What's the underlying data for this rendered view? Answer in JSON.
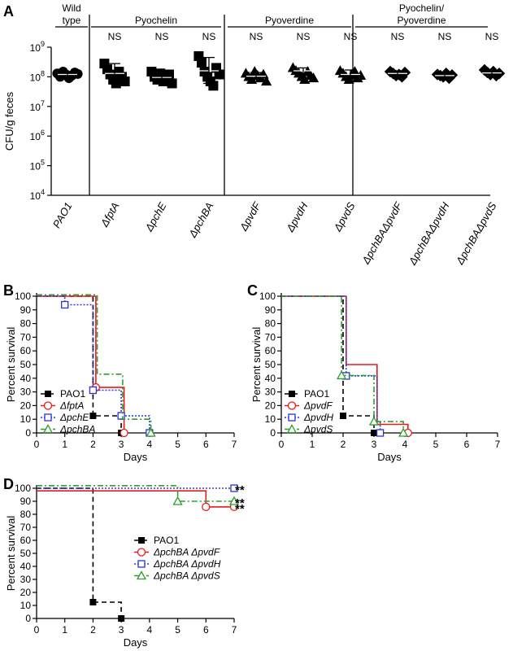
{
  "chart_data": [
    {
      "panel": "A",
      "type": "scatter",
      "ylabel": "CFU/g feces",
      "yscale": "log",
      "ylim": [
        10000,
        1000000000
      ],
      "yticks": [
        {
          "value": 10000,
          "base": "10",
          "exp": "4"
        },
        {
          "value": 100000,
          "base": "10",
          "exp": "5"
        },
        {
          "value": 1000000,
          "base": "10",
          "exp": "6"
        },
        {
          "value": 10000000,
          "base": "10",
          "exp": "7"
        },
        {
          "value": 100000000,
          "base": "10",
          "exp": "8"
        },
        {
          "value": 1000000000,
          "base": "10",
          "exp": "9"
        }
      ],
      "groups": [
        {
          "label": "Wild\ntype",
          "categories": [
            0
          ]
        },
        {
          "label": "Pyochelin",
          "categories": [
            1,
            2,
            3
          ]
        },
        {
          "label": "Pyoverdine",
          "categories": [
            4,
            5,
            6
          ]
        },
        {
          "label": "Pyochelin/\nPyoverdine",
          "categories": [
            7,
            8,
            9
          ]
        }
      ],
      "categories": [
        "PAO1",
        "ΔfptA",
        "ΔpchE",
        "ΔpchBA",
        "ΔpvdF",
        "ΔpvdH",
        "ΔpvdS",
        "ΔpchBAΔpvdF",
        "ΔpchBAΔpvdH",
        "ΔpchBAΔpvdS"
      ],
      "annotations": [
        "",
        "NS",
        "NS",
        "NS",
        "NS",
        "NS",
        "NS",
        "NS",
        "NS",
        "NS"
      ],
      "markers": [
        "circle",
        "square",
        "square",
        "square",
        "triangle",
        "triangle",
        "triangle",
        "diamond",
        "diamond",
        "diamond"
      ],
      "series": [
        {
          "category": "PAO1",
          "values": [
            130000000.0,
            100000000.0,
            150000000.0,
            120000000.0,
            90000000.0,
            110000000.0,
            140000000.0,
            125000000.0
          ]
        },
        {
          "category": "ΔfptA",
          "values": [
            280000000.0,
            180000000.0,
            120000000.0,
            80000000.0,
            60000000.0,
            150000000.0,
            100000000.0,
            70000000.0
          ]
        },
        {
          "category": "ΔpchE",
          "values": [
            150000000.0,
            100000000.0,
            80000000.0,
            130000000.0,
            70000000.0,
            90000000.0,
            120000000.0,
            60000000.0
          ]
        },
        {
          "category": "ΔpchBA",
          "values": [
            500000000.0,
            300000000.0,
            150000000.0,
            100000000.0,
            70000000.0,
            50000000.0,
            200000000.0,
            120000000.0
          ]
        },
        {
          "category": "ΔpvdF",
          "values": [
            130000000.0,
            100000000.0,
            80000000.0,
            150000000.0,
            110000000.0,
            90000000.0,
            120000000.0,
            70000000.0
          ]
        },
        {
          "category": "ΔpvdH",
          "values": [
            200000000.0,
            160000000.0,
            130000000.0,
            100000000.0,
            80000000.0,
            150000000.0,
            110000000.0,
            90000000.0
          ]
        },
        {
          "category": "ΔpvdS",
          "values": [
            160000000.0,
            130000000.0,
            100000000.0,
            80000000.0,
            120000000.0,
            150000000.0,
            90000000.0,
            110000000.0
          ]
        },
        {
          "category": "ΔpchBAΔpvdF",
          "values": [
            150000000.0,
            130000000.0,
            110000000.0,
            120000000.0,
            100000000.0,
            140000000.0
          ]
        },
        {
          "category": "ΔpchBAΔpvdH",
          "values": [
            120000000.0,
            110000000.0,
            100000000.0,
            130000000.0,
            90000000.0,
            115000000.0
          ]
        },
        {
          "category": "ΔpchBAΔpvdS",
          "values": [
            170000000.0,
            140000000.0,
            120000000.0,
            150000000.0,
            110000000.0,
            130000000.0
          ]
        }
      ],
      "means": [
        120000000.0,
        130000000.0,
        95000000.0,
        160000000.0,
        105000000.0,
        160000000.0,
        120000000.0,
        130000000.0,
        110000000.0,
        135000000.0
      ],
      "sd_upper": [
        150000000.0,
        280000000.0,
        130000000.0,
        450000000.0,
        140000000.0,
        200000000.0,
        170000000.0,
        160000000.0,
        130000000.0,
        170000000.0
      ],
      "sd_lower": [
        100000000.0,
        65000000.0,
        70000000.0,
        60000000.0,
        80000000.0,
        110000000.0,
        85000000.0,
        105000000.0,
        95000000.0,
        110000000.0
      ]
    },
    {
      "panel": "B",
      "type": "line",
      "xlabel": "Days",
      "ylabel": "Percent survival",
      "xlim": [
        0,
        7
      ],
      "ylim": [
        0,
        100
      ],
      "xticks": [
        "0",
        "1",
        "2",
        "3",
        "4",
        "5",
        "6",
        "7"
      ],
      "yticks": [
        "0",
        "10",
        "20",
        "30",
        "40",
        "50",
        "60",
        "70",
        "80",
        "90",
        "100"
      ],
      "legend_position": "bottom-left",
      "series": [
        {
          "name": "PAO1",
          "color": "#000000",
          "dash": "6,4",
          "marker": "filled-square",
          "x": [
            0,
            2,
            3
          ],
          "y": [
            100,
            12.5,
            0
          ],
          "markers": [
            [
              2,
              12.5
            ],
            [
              3,
              0
            ]
          ]
        },
        {
          "name": "ΔfptA",
          "color": "#e8191d",
          "dash": "",
          "marker": "open-circle",
          "x": [
            0,
            2.1,
            3.1
          ],
          "y": [
            100,
            33.3,
            0
          ],
          "markers": [
            [
              2.1,
              33.3
            ],
            [
              3.1,
              0
            ]
          ]
        },
        {
          "name": "ΔpchE",
          "color": "#2a33d4",
          "dash": "2,2",
          "marker": "open-square",
          "x": [
            0,
            1,
            2,
            3,
            4
          ],
          "y": [
            100,
            93.75,
            31.25,
            12.5,
            0
          ],
          "markers": [
            [
              1,
              93.75
            ],
            [
              2,
              31.25
            ],
            [
              3,
              12.5
            ],
            [
              4,
              0
            ]
          ]
        },
        {
          "name": "ΔpchBA",
          "color": "#2e9e2e",
          "dash": "7,3,2,3",
          "marker": "open-triangle",
          "x": [
            0,
            2.15,
            3.05,
            4.05
          ],
          "y": [
            101,
            43,
            10,
            0
          ],
          "markers": [
            [
              4.05,
              0
            ]
          ]
        }
      ]
    },
    {
      "panel": "C",
      "type": "line",
      "xlabel": "Days",
      "ylabel": "Percent survival",
      "xlim": [
        0,
        7
      ],
      "ylim": [
        0,
        100
      ],
      "xticks": [
        "0",
        "1",
        "2",
        "3",
        "4",
        "5",
        "6",
        "7"
      ],
      "yticks": [
        "0",
        "10",
        "20",
        "30",
        "40",
        "50",
        "60",
        "70",
        "80",
        "90",
        "100"
      ],
      "legend_position": "bottom-left",
      "series": [
        {
          "name": "PAO1",
          "color": "#000000",
          "dash": "6,4",
          "marker": "filled-square",
          "x": [
            0,
            2,
            3
          ],
          "y": [
            100,
            12.5,
            0
          ],
          "markers": [
            [
              2,
              12.5
            ],
            [
              3,
              0
            ]
          ]
        },
        {
          "name": "ΔpvdF",
          "color": "#e8191d",
          "dash": "",
          "marker": "open-circle",
          "x": [
            0,
            2.1,
            3.1,
            4.1
          ],
          "y": [
            100,
            50,
            6.25,
            0
          ],
          "markers": [
            [
              4.1,
              0
            ]
          ]
        },
        {
          "name": "ΔpvdH",
          "color": "#2a33d4",
          "dash": "2,2",
          "marker": "open-square",
          "x": [
            0,
            2.1,
            3.1,
            3.2
          ],
          "y": [
            100,
            41.7,
            8.3,
            0
          ],
          "markers": [
            [
              2.1,
              41.7
            ],
            [
              3.2,
              0
            ]
          ]
        },
        {
          "name": "ΔpvdS",
          "color": "#2e9e2e",
          "dash": "7,3,2,3",
          "marker": "open-triangle",
          "x": [
            0,
            1.95,
            3.0,
            3.95
          ],
          "y": [
            100,
            42,
            8.3,
            0
          ],
          "markers": [
            [
              1.95,
              42
            ],
            [
              3.0,
              8.3
            ],
            [
              3.95,
              0
            ]
          ]
        }
      ]
    },
    {
      "panel": "D",
      "type": "line",
      "xlabel": "Days",
      "ylabel": "Percent survival",
      "xlim": [
        0,
        7
      ],
      "ylim": [
        0,
        100
      ],
      "xticks": [
        "0",
        "1",
        "2",
        "3",
        "4",
        "5",
        "6",
        "7"
      ],
      "yticks": [
        "0",
        "10",
        "20",
        "30",
        "40",
        "50",
        "60",
        "70",
        "80",
        "90",
        "100"
      ],
      "legend_position": "right",
      "significance": [
        "**",
        "**",
        "**"
      ],
      "series": [
        {
          "name": "PAO1",
          "color": "#000000",
          "dash": "6,4",
          "marker": "filled-square",
          "x": [
            0,
            2,
            3
          ],
          "y": [
            100,
            12.5,
            0
          ],
          "markers": [
            [
              2,
              12.5
            ],
            [
              3,
              0
            ]
          ]
        },
        {
          "name": "ΔpchBA ΔpvdF",
          "color": "#e8191d",
          "dash": "",
          "marker": "open-circle",
          "x": [
            0,
            6,
            7
          ],
          "y": [
            98,
            85.7,
            85.7
          ],
          "markers": [
            [
              6,
              85.7
            ],
            [
              7,
              85.7
            ]
          ]
        },
        {
          "name": "ΔpchBA ΔpvdH",
          "color": "#2a33d4",
          "dash": "2,2",
          "marker": "open-square",
          "x": [
            0,
            7
          ],
          "y": [
            100,
            100
          ],
          "markers": [
            [
              7,
              100
            ]
          ]
        },
        {
          "name": "ΔpchBA ΔpvdS",
          "color": "#2e9e2e",
          "dash": "7,3,2,3",
          "marker": "open-triangle",
          "x": [
            0,
            5,
            7
          ],
          "y": [
            102,
            90,
            90
          ],
          "markers": [
            [
              5,
              90
            ],
            [
              7,
              90
            ]
          ]
        }
      ]
    }
  ],
  "panel_labels": [
    "A",
    "B",
    "C",
    "D"
  ]
}
